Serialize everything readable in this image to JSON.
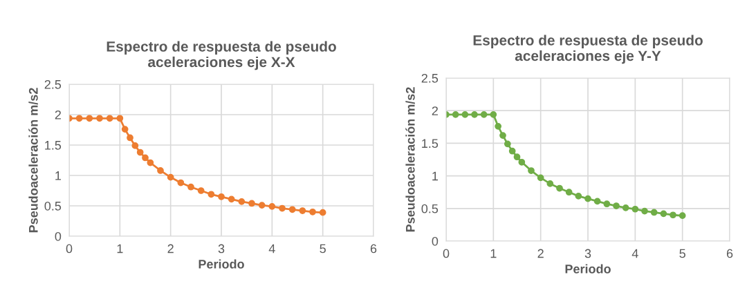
{
  "chart_data": [
    {
      "type": "line",
      "title": "Espectro de respuesta de pseudo\naceleraciones eje X-X",
      "xlabel": "Periodo",
      "ylabel": "Pseudoaceleración m/s2",
      "x": [
        0,
        0.2,
        0.4,
        0.6,
        0.8,
        1.0,
        1.1,
        1.2,
        1.3,
        1.4,
        1.5,
        1.6,
        1.8,
        2.0,
        2.2,
        2.4,
        2.6,
        2.8,
        3.0,
        3.2,
        3.4,
        3.6,
        3.8,
        4.0,
        4.2,
        4.4,
        4.6,
        4.8,
        5.0
      ],
      "series": [
        {
          "color": "#ed7d31",
          "values": [
            1.94,
            1.94,
            1.94,
            1.94,
            1.94,
            1.94,
            1.76,
            1.62,
            1.49,
            1.38,
            1.29,
            1.21,
            1.08,
            0.97,
            0.88,
            0.81,
            0.75,
            0.69,
            0.65,
            0.61,
            0.57,
            0.54,
            0.51,
            0.49,
            0.46,
            0.44,
            0.42,
            0.4,
            0.39
          ]
        }
      ],
      "xlim": [
        0,
        6
      ],
      "xticks": [
        0,
        1,
        2,
        3,
        4,
        5,
        6
      ],
      "ylim": [
        0,
        2.5
      ],
      "yticks": [
        0,
        0.5,
        1,
        1.5,
        2,
        2.5
      ],
      "grid": true,
      "marker": "circle",
      "line_style": "solid"
    },
    {
      "type": "line",
      "title": "Espectro de respuesta de pseudo\naceleraciones eje Y-Y",
      "xlabel": "Periodo",
      "ylabel": "Pseudoaceleración m/s2",
      "x": [
        0,
        0.2,
        0.4,
        0.6,
        0.8,
        1.0,
        1.1,
        1.2,
        1.3,
        1.4,
        1.5,
        1.6,
        1.8,
        2.0,
        2.2,
        2.4,
        2.6,
        2.8,
        3.0,
        3.2,
        3.4,
        3.6,
        3.8,
        4.0,
        4.2,
        4.4,
        4.6,
        4.8,
        5.0
      ],
      "series": [
        {
          "color": "#70ad47",
          "values": [
            1.94,
            1.94,
            1.94,
            1.94,
            1.94,
            1.94,
            1.76,
            1.62,
            1.49,
            1.38,
            1.29,
            1.21,
            1.08,
            0.97,
            0.88,
            0.81,
            0.75,
            0.69,
            0.65,
            0.61,
            0.57,
            0.54,
            0.51,
            0.49,
            0.46,
            0.44,
            0.42,
            0.4,
            0.39
          ]
        }
      ],
      "xlim": [
        0,
        6
      ],
      "xticks": [
        0,
        1,
        2,
        3,
        4,
        5,
        6
      ],
      "ylim": [
        0,
        2.5
      ],
      "yticks": [
        0,
        0.5,
        1,
        1.5,
        2,
        2.5
      ],
      "grid": true,
      "marker": "circle",
      "line_style": "solid"
    }
  ]
}
